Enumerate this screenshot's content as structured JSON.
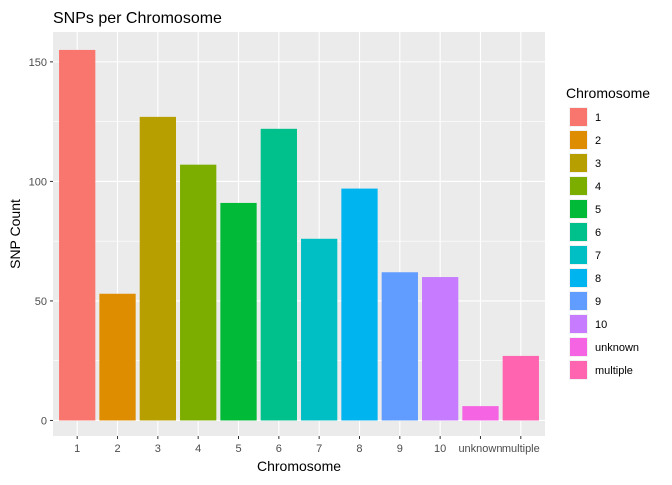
{
  "chart_data": {
    "type": "bar",
    "title": "SNPs per Chromosome",
    "xlabel": "Chromosome",
    "ylabel": "SNP Count",
    "ylim": [
      -6.5,
      162.5
    ],
    "yticks": [
      0,
      50,
      100,
      150
    ],
    "grid": true,
    "legend": {
      "title": "Chromosome",
      "position": "right"
    },
    "categories": [
      "1",
      "2",
      "3",
      "4",
      "5",
      "6",
      "7",
      "8",
      "9",
      "10",
      "unknown",
      "multiple"
    ],
    "values": [
      155,
      53,
      127,
      107,
      91,
      122,
      76,
      97,
      62,
      60,
      6,
      27
    ],
    "colors": [
      "#F8766D",
      "#DE8C00",
      "#B79F00",
      "#7CAE00",
      "#00BA38",
      "#00C08B",
      "#00BFC4",
      "#00B4F0",
      "#619CFF",
      "#C77CFF",
      "#F564E3",
      "#FF64B0"
    ]
  }
}
